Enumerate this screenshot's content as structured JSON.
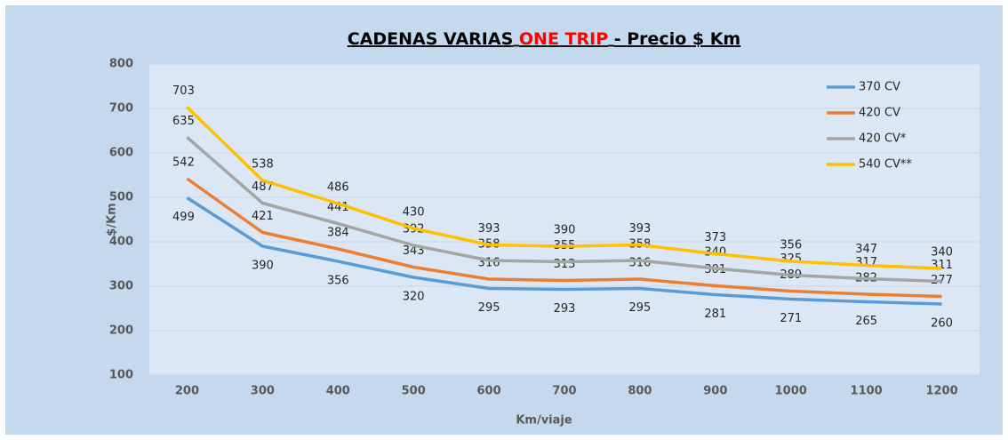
{
  "chart_data": {
    "type": "line",
    "title": [
      "CADENAS VARIAS",
      "ONE TRIP",
      "- Precio $ Km"
    ],
    "title_highlight_color": "#ff0000",
    "xlabel": "Km/viaje",
    "ylabel": "$/Km",
    "categories": [
      200,
      300,
      400,
      500,
      600,
      700,
      800,
      900,
      1000,
      1100,
      1200
    ],
    "ylim": [
      100,
      800
    ],
    "yticks": [
      100,
      200,
      300,
      400,
      500,
      600,
      700,
      800
    ],
    "grid": true,
    "legend": "top-right",
    "series": [
      {
        "name": "370 CV",
        "color": "#5b9bd5",
        "values": [
          499,
          390,
          356,
          320,
          295,
          293,
          295,
          281,
          271,
          265,
          260
        ]
      },
      {
        "name": "420 CV",
        "color": "#ed7d31",
        "values": [
          542,
          421,
          384,
          343,
          316,
          313,
          316,
          301,
          289,
          282,
          277
        ]
      },
      {
        "name": "420 CV*",
        "color": "#a5a5a5",
        "values": [
          635,
          487,
          441,
          392,
          358,
          355,
          358,
          340,
          325,
          317,
          311
        ]
      },
      {
        "name": "540 CV**",
        "color": "#ffc000",
        "values": [
          703,
          538,
          486,
          430,
          393,
          390,
          393,
          373,
          356,
          347,
          340
        ]
      }
    ]
  }
}
